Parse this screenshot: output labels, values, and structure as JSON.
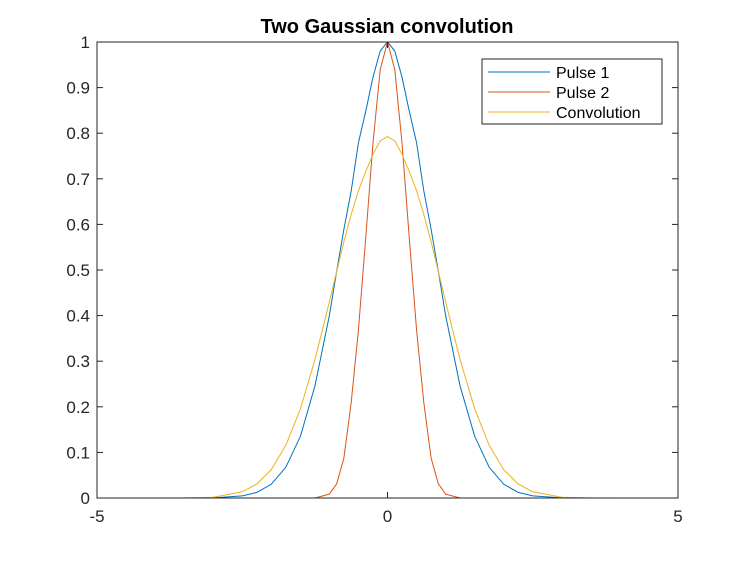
{
  "chart_data": {
    "type": "line",
    "title": "Two Gaussian convolution",
    "xlabel": "",
    "ylabel": "",
    "xlim": [
      -5,
      5
    ],
    "ylim": [
      0,
      1
    ],
    "x_ticks": [
      -5,
      0,
      5
    ],
    "x_tick_labels": [
      "-5",
      "0",
      "5"
    ],
    "y_ticks": [
      0,
      0.1,
      0.2,
      0.3,
      0.4,
      0.5,
      0.6,
      0.7,
      0.8,
      0.9,
      1
    ],
    "y_tick_labels": [
      "0",
      "0.1",
      "0.2",
      "0.3",
      "0.4",
      "0.5",
      "0.6",
      "0.7",
      "0.8",
      "0.9",
      "1"
    ],
    "grid": false,
    "legend_position": "top-right",
    "x": [
      -5.0,
      -4.5,
      -4.0,
      -3.5,
      -3.0,
      -2.5,
      -2.25,
      -2.0,
      -1.75,
      -1.5,
      -1.25,
      -1.0,
      -0.875,
      -0.75,
      -0.625,
      -0.5,
      -0.375,
      -0.25,
      -0.125,
      0.0,
      0.125,
      0.25,
      0.375,
      0.5,
      0.625,
      0.75,
      0.875,
      1.0,
      1.25,
      1.5,
      1.75,
      2.0,
      2.25,
      2.5,
      3.0,
      3.5,
      4.0,
      4.5,
      5.0
    ],
    "series": [
      {
        "name": "Pulse 1",
        "color": "#0072BD",
        "values": [
          0.0,
          0.0,
          0.0,
          0.0,
          0.0003,
          0.0045,
          0.0122,
          0.0302,
          0.0673,
          0.1353,
          0.2454,
          0.4005,
          0.4975,
          0.5895,
          0.6734,
          0.7788,
          0.8478,
          0.9231,
          0.9802,
          1.0,
          0.9802,
          0.9231,
          0.8478,
          0.7788,
          0.6734,
          0.5895,
          0.4975,
          0.4005,
          0.2454,
          0.1353,
          0.0673,
          0.0302,
          0.0122,
          0.0045,
          0.0003,
          0.0,
          0.0,
          0.0,
          0.0
        ]
      },
      {
        "name": "Pulse 2",
        "color": "#D95319",
        "values": [
          0.0,
          0.0,
          0.0,
          0.0,
          0.0,
          0.0,
          0.0,
          0.0,
          0.0,
          0.0,
          0.0,
          0.0086,
          0.0312,
          0.0878,
          0.2096,
          0.3679,
          0.5698,
          0.7788,
          0.9394,
          1.0,
          0.9394,
          0.7788,
          0.5698,
          0.3679,
          0.2096,
          0.0878,
          0.0312,
          0.0086,
          0.0,
          0.0,
          0.0,
          0.0,
          0.0,
          0.0,
          0.0,
          0.0,
          0.0,
          0.0,
          0.0
        ]
      },
      {
        "name": "Convolution",
        "color": "#EDB120",
        "values": [
          0.0,
          0.0,
          0.0,
          0.0003,
          0.0018,
          0.0137,
          0.0306,
          0.0622,
          0.1154,
          0.1954,
          0.3032,
          0.4305,
          0.4973,
          0.5621,
          0.6218,
          0.6737,
          0.7155,
          0.7537,
          0.7831,
          0.7926,
          0.7831,
          0.7537,
          0.7155,
          0.6737,
          0.6218,
          0.5621,
          0.4973,
          0.4305,
          0.3032,
          0.1954,
          0.1154,
          0.0622,
          0.0306,
          0.0137,
          0.0018,
          0.0003,
          0.0,
          0.0,
          0.0
        ]
      }
    ]
  }
}
